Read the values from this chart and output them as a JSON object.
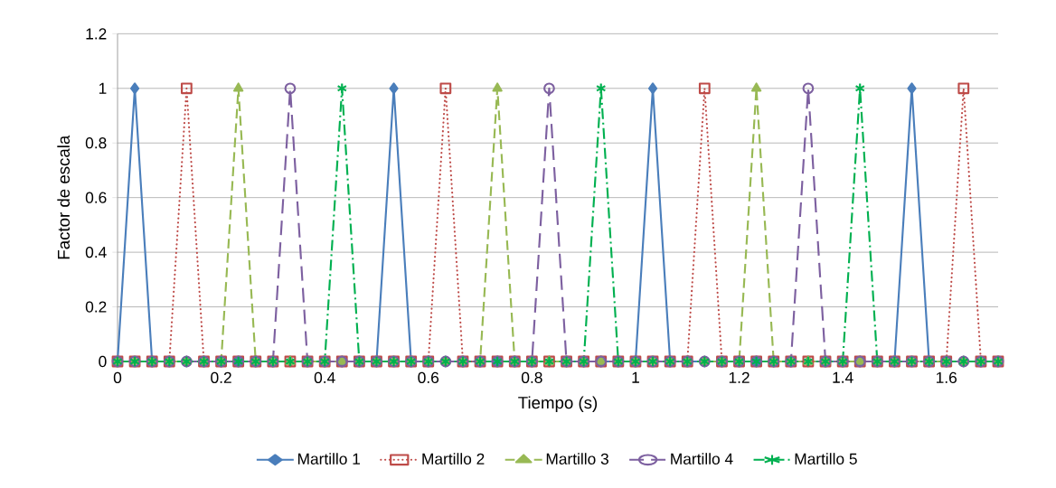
{
  "chart_data": {
    "type": "line",
    "xlabel": "Tiempo (s)",
    "ylabel": "Factor de escala",
    "x": [
      0,
      0.0333,
      0.0667,
      0.1,
      0.1333,
      0.1667,
      0.2,
      0.2333,
      0.2667,
      0.3,
      0.3333,
      0.3667,
      0.4,
      0.4333,
      0.4667,
      0.5,
      0.5333,
      0.5667,
      0.6,
      0.6333,
      0.6667,
      0.7,
      0.7333,
      0.7667,
      0.8,
      0.8333,
      0.8667,
      0.9,
      0.9333,
      0.9667,
      1,
      1.0333,
      1.0667,
      1.1,
      1.1333,
      1.1667,
      1.2,
      1.2333,
      1.2667,
      1.3,
      1.3333,
      1.3667,
      1.4,
      1.4333,
      1.4667,
      1.5,
      1.5333,
      1.5667,
      1.6,
      1.6333,
      1.6667,
      1.7
    ],
    "series": [
      {
        "name": "Martillo 1",
        "color": "#4a7ebb",
        "marker": "diamond",
        "line_style": "solid",
        "values": [
          0,
          1,
          0,
          0,
          0,
          0,
          0,
          0,
          0,
          0,
          0,
          0,
          0,
          0,
          0,
          0,
          1,
          0,
          0,
          0,
          0,
          0,
          0,
          0,
          0,
          0,
          0,
          0,
          0,
          0,
          0,
          1,
          0,
          0,
          0,
          0,
          0,
          0,
          0,
          0,
          0,
          0,
          0,
          0,
          0,
          0,
          1,
          0,
          0,
          0,
          0,
          0
        ]
      },
      {
        "name": "Martillo 2",
        "color": "#be4b48",
        "marker": "square",
        "line_style": "dotted",
        "values": [
          0,
          0,
          0,
          0,
          1,
          0,
          0,
          0,
          0,
          0,
          0,
          0,
          0,
          0,
          0,
          0,
          0,
          0,
          0,
          1,
          0,
          0,
          0,
          0,
          0,
          0,
          0,
          0,
          0,
          0,
          0,
          0,
          0,
          0,
          1,
          0,
          0,
          0,
          0,
          0,
          0,
          0,
          0,
          0,
          0,
          0,
          0,
          0,
          0,
          1,
          0,
          0
        ]
      },
      {
        "name": "Martillo 3",
        "color": "#98b954",
        "marker": "triangle",
        "line_style": "dashed",
        "values": [
          0,
          0,
          0,
          0,
          0,
          0,
          0,
          1,
          0,
          0,
          0,
          0,
          0,
          0,
          0,
          0,
          0,
          0,
          0,
          0,
          0,
          0,
          1,
          0,
          0,
          0,
          0,
          0,
          0,
          0,
          0,
          0,
          0,
          0,
          0,
          0,
          0,
          1,
          0,
          0,
          0,
          0,
          0,
          0,
          0,
          0,
          0,
          0,
          0,
          0,
          0,
          0
        ]
      },
      {
        "name": "Martillo 4",
        "color": "#7d60a0",
        "marker": "circle",
        "line_style": "longdashed",
        "values": [
          0,
          0,
          0,
          0,
          0,
          0,
          0,
          0,
          0,
          0,
          1,
          0,
          0,
          0,
          0,
          0,
          0,
          0,
          0,
          0,
          0,
          0,
          0,
          0,
          0,
          1,
          0,
          0,
          0,
          0,
          0,
          0,
          0,
          0,
          0,
          0,
          0,
          0,
          0,
          0,
          1,
          0,
          0,
          0,
          0,
          0,
          0,
          0,
          0,
          0,
          0,
          0
        ]
      },
      {
        "name": "Martillo 5",
        "color": "#00b050",
        "marker": "cross",
        "line_style": "dashdot",
        "values": [
          0,
          0,
          0,
          0,
          0,
          0,
          0,
          0,
          0,
          0,
          0,
          0,
          0,
          1,
          0,
          0,
          0,
          0,
          0,
          0,
          0,
          0,
          0,
          0,
          0,
          0,
          0,
          0,
          1,
          0,
          0,
          0,
          0,
          0,
          0,
          0,
          0,
          0,
          0,
          0,
          0,
          0,
          0,
          1,
          0,
          0,
          0,
          0,
          0,
          0,
          0,
          0
        ]
      }
    ],
    "xlim": [
      0,
      1.7
    ],
    "xticks": [
      0,
      0.2,
      0.4,
      0.6,
      0.8,
      1,
      1.2,
      1.4,
      1.6
    ],
    "ylim": [
      0,
      1.2
    ],
    "yticks": [
      0,
      0.2,
      0.4,
      0.6,
      0.8,
      1,
      1.2
    ],
    "grid": "y",
    "legend": "bottom"
  }
}
